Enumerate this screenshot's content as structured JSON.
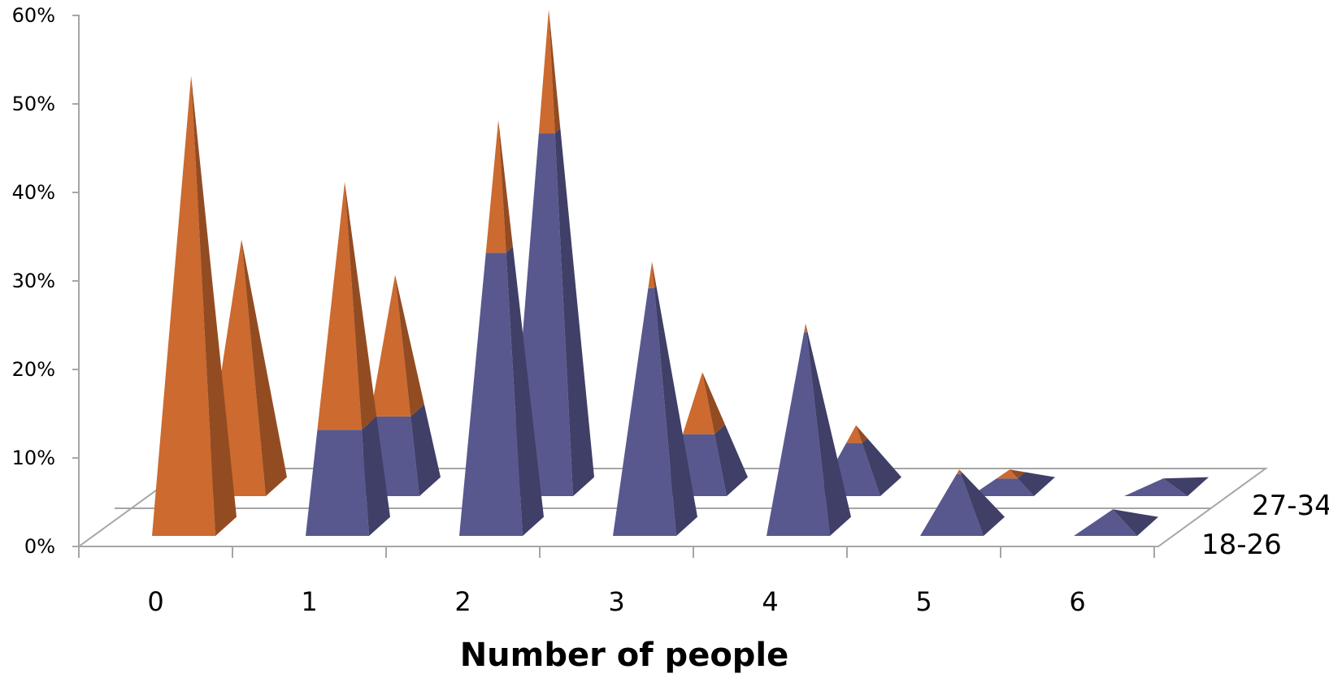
{
  "chart_data": {
    "type": "bar",
    "style": "3d-pyramid-stacked",
    "title": "",
    "xlabel": "Number of people",
    "ylabel": "",
    "ylim": [
      0,
      60
    ],
    "y_ticks": [
      "0%",
      "10%",
      "20%",
      "30%",
      "40%",
      "50%",
      "60%"
    ],
    "categories": [
      "0",
      "1",
      "2",
      "3",
      "4",
      "5",
      "6"
    ],
    "depth_categories": [
      "18-26",
      "27-34"
    ],
    "series": [
      {
        "values": {
          "18-26": [
            0,
            12,
            32,
            28,
            23,
            7,
            3
          ],
          "27-34": [
            0,
            9,
            41,
            7,
            6,
            2,
            2
          ]
        }
      },
      {
        "values": {
          "18-26": [
            52,
            28,
            15,
            3,
            1,
            0.5,
            0
          ],
          "27-34": [
            29,
            16,
            14,
            7,
            2,
            1,
            0
          ]
        }
      }
    ],
    "colors": {
      "bottom_series": "#58588f",
      "top_series": "#cc6a2f"
    },
    "grid": false,
    "legend": "none"
  }
}
